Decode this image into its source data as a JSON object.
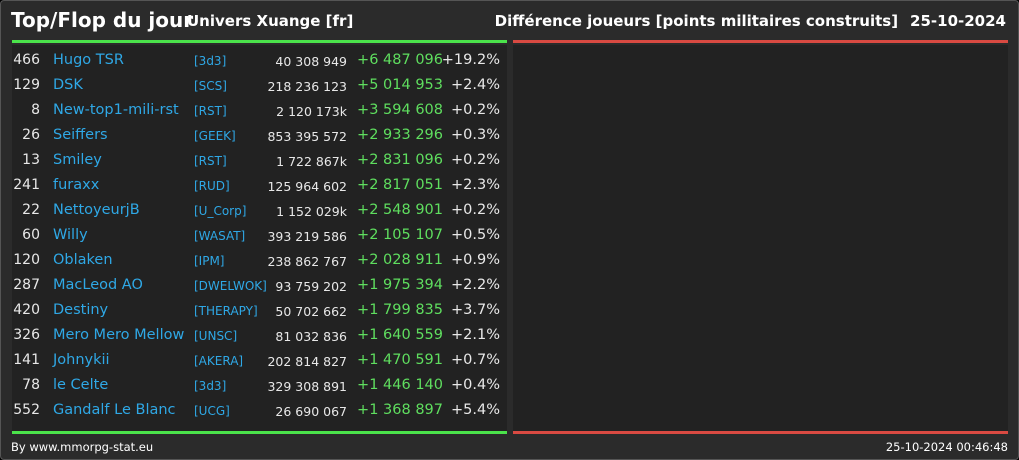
{
  "header": {
    "title": "Top/Flop du jour",
    "universe": "Univers Xuange [fr]",
    "subtitle": "Différence joueurs [points militaires construits]",
    "date": "25-10-2024"
  },
  "colors": {
    "background": "#2b2b2b",
    "panel": "#222222",
    "top_bar": "#4be34b",
    "flop_bar": "#d94a42",
    "link": "#2fa8e6",
    "positive": "#5fde5f"
  },
  "rows": [
    {
      "rank": "466",
      "name": "Hugo TSR",
      "ally": "[3d3]",
      "points": "40 308 949",
      "diff": "+6 487 096",
      "pct": "+19.2%"
    },
    {
      "rank": "129",
      "name": "DSK",
      "ally": "[SCS]",
      "points": "218 236 123",
      "diff": "+5 014 953",
      "pct": "+2.4%"
    },
    {
      "rank": "8",
      "name": "New-top1-mili-rst",
      "ally": "[RST]",
      "points": "2 120 173k",
      "diff": "+3 594 608",
      "pct": "+0.2%"
    },
    {
      "rank": "26",
      "name": "Seiffers",
      "ally": "[GEEK]",
      "points": "853 395 572",
      "diff": "+2 933 296",
      "pct": "+0.3%"
    },
    {
      "rank": "13",
      "name": "Smiley",
      "ally": "[RST]",
      "points": "1 722 867k",
      "diff": "+2 831 096",
      "pct": "+0.2%"
    },
    {
      "rank": "241",
      "name": "furaxx",
      "ally": "[RUD]",
      "points": "125 964 602",
      "diff": "+2 817 051",
      "pct": "+2.3%"
    },
    {
      "rank": "22",
      "name": "NettoyeurjB",
      "ally": "[U_Corp]",
      "points": "1 152 029k",
      "diff": "+2 548 901",
      "pct": "+0.2%"
    },
    {
      "rank": "60",
      "name": "Willy",
      "ally": "[WASAT]",
      "points": "393 219 586",
      "diff": "+2 105 107",
      "pct": "+0.5%"
    },
    {
      "rank": "120",
      "name": "Oblaken",
      "ally": "[IPM]",
      "points": "238 862 767",
      "diff": "+2 028 911",
      "pct": "+0.9%"
    },
    {
      "rank": "287",
      "name": "MacLeod AO",
      "ally": "[DWELWOK]",
      "points": "93 759 202",
      "diff": "+1 975 394",
      "pct": "+2.2%"
    },
    {
      "rank": "420",
      "name": "Destiny",
      "ally": "[THERAPY]",
      "points": "50 702 662",
      "diff": "+1 799 835",
      "pct": "+3.7%"
    },
    {
      "rank": "326",
      "name": "Mero Mero Mellow",
      "ally": "[UNSC]",
      "points": "81 032 836",
      "diff": "+1 640 559",
      "pct": "+2.1%"
    },
    {
      "rank": "141",
      "name": "Johnykii",
      "ally": "[AKERA]",
      "points": "202 814 827",
      "diff": "+1 470 591",
      "pct": "+0.7%"
    },
    {
      "rank": "78",
      "name": "le Celte",
      "ally": "[3d3]",
      "points": "329 308 891",
      "diff": "+1 446 140",
      "pct": "+0.4%"
    },
    {
      "rank": "552",
      "name": "Gandalf Le Blanc",
      "ally": "[UCG]",
      "points": "26 690 067",
      "diff": "+1 368 897",
      "pct": "+5.4%"
    }
  ],
  "footer": {
    "credit": "By www.mmorpg-stat.eu",
    "timestamp": "25-10-2024 00:46:48"
  }
}
